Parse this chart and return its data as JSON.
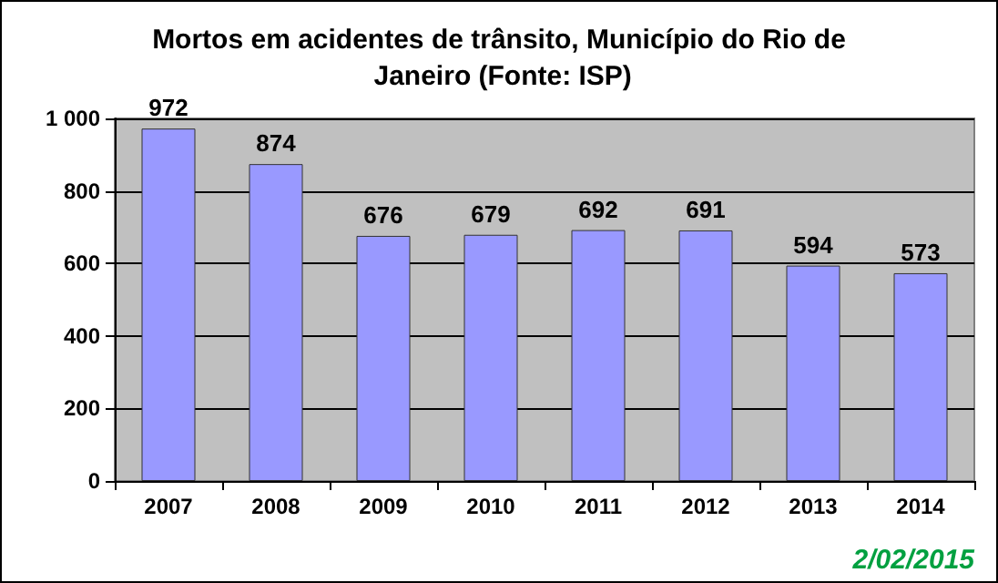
{
  "chart_data": {
    "type": "bar",
    "title": "Mortos em acidentes de trânsito, Município do Rio de Janeiro (Fonte: ISP)",
    "categories": [
      "2007",
      "2008",
      "2009",
      "2010",
      "2011",
      "2012",
      "2013",
      "2014"
    ],
    "values": [
      972,
      874,
      676,
      679,
      692,
      691,
      594,
      573
    ],
    "color": "#9999ff",
    "ylim": [
      0,
      1000
    ],
    "yticks": [
      0,
      200,
      400,
      600,
      800,
      {
        "value": 1000,
        "label": "1 000"
      }
    ],
    "grid": "y",
    "data_labels": true,
    "annotations": [
      "2/02/2015"
    ]
  }
}
